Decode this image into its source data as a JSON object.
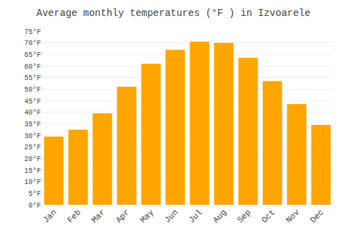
{
  "chart_data": {
    "type": "bar",
    "title": "Average monthly temperatures (°F ) in Izvoarele",
    "categories": [
      "Jan",
      "Feb",
      "Mar",
      "Apr",
      "May",
      "Jun",
      "Jul",
      "Aug",
      "Sep",
      "Oct",
      "Nov",
      "Dec"
    ],
    "values": [
      29.5,
      32.5,
      39.5,
      51.0,
      61.0,
      67.0,
      70.5,
      70.0,
      63.5,
      53.5,
      43.5,
      34.5
    ],
    "color": "#FFA500",
    "ylim": [
      0,
      75
    ],
    "yticks": [
      {
        "value": 0,
        "label": "0°F"
      },
      {
        "value": 5,
        "label": "5°F"
      },
      {
        "value": 10,
        "label": "10°F"
      },
      {
        "value": 15,
        "label": "15°F"
      },
      {
        "value": 20,
        "label": "20°F"
      },
      {
        "value": 25,
        "label": "25°F"
      },
      {
        "value": 30,
        "label": "30°F"
      },
      {
        "value": 35,
        "label": "35°F"
      },
      {
        "value": 40,
        "label": "40°F"
      },
      {
        "value": 45,
        "label": "45°F"
      },
      {
        "value": 50,
        "label": "50°F"
      },
      {
        "value": 55,
        "label": "55°F"
      },
      {
        "value": 60,
        "label": "60°F"
      },
      {
        "value": 65,
        "label": "65°F"
      },
      {
        "value": 70,
        "label": "70°F"
      },
      {
        "value": 75,
        "label": "75°F"
      }
    ],
    "grid": true
  }
}
